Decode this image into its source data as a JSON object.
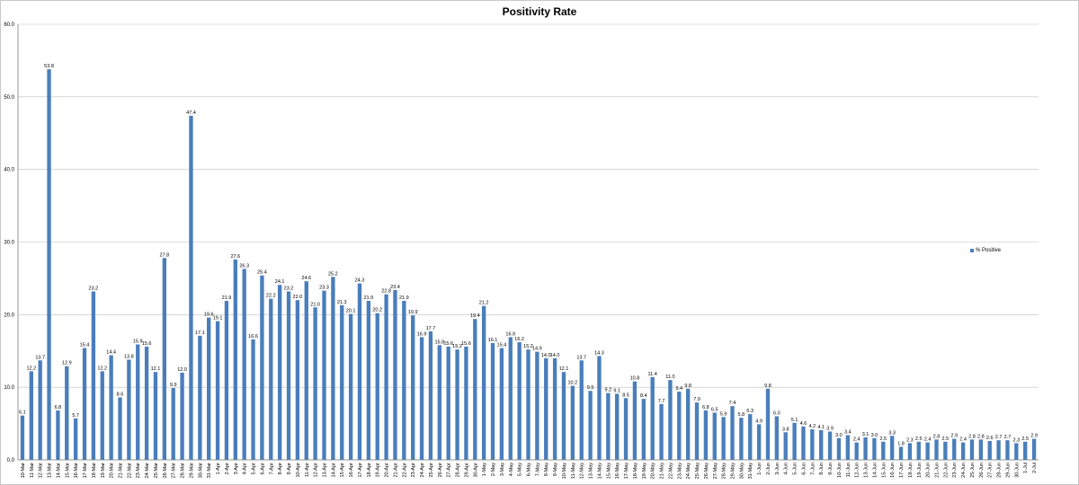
{
  "colors": {
    "bar": "#4a7ebb",
    "grid": "#bfbfbf",
    "axis": "#7f7f7f"
  },
  "chart_data": {
    "type": "bar",
    "title": "Positivity Rate",
    "xlabel": "",
    "ylabel": "",
    "ylim": [
      0,
      60
    ],
    "yticks": [
      "0.0",
      "10.0",
      "20.0",
      "30.0",
      "40.0",
      "50.0",
      "60.0"
    ],
    "grid": true,
    "legend_position": "right",
    "categories": [
      "10-Mar",
      "11-Mar",
      "12-Mar",
      "13-Mar",
      "14-Mar",
      "15-Mar",
      "16-Mar",
      "17-Mar",
      "18-Mar",
      "19-Mar",
      "20-Mar",
      "21-Mar",
      "22-Mar",
      "23-Mar",
      "24-Mar",
      "25-Mar",
      "26-Mar",
      "27-Mar",
      "28-Mar",
      "29-Mar",
      "30-Mar",
      "31-Mar",
      "1-Apr",
      "2-Apr",
      "3-Apr",
      "4-Apr",
      "5-Apr",
      "6-Apr",
      "7-Apr",
      "8-Apr",
      "9-Apr",
      "10-Apr",
      "11-Apr",
      "12-Apr",
      "13-Apr",
      "14-Apr",
      "15-Apr",
      "16-Apr",
      "17-Apr",
      "18-Apr",
      "19-Apr",
      "20-Apr",
      "21-Apr",
      "22-Apr",
      "23-Apr",
      "24-Apr",
      "25-Apr",
      "26-Apr",
      "27-Apr",
      "28-Apr",
      "29-Apr",
      "30-Apr",
      "1-May",
      "2-May",
      "3-May",
      "4-May",
      "5-May",
      "6-May",
      "7-May",
      "8-May",
      "9-May",
      "10-May",
      "11-May",
      "12-May",
      "13-May",
      "14-May",
      "15-May",
      "16-May",
      "17-May",
      "18-May",
      "19-May",
      "20-May",
      "21-May",
      "22-May",
      "23-May",
      "24-May",
      "25-May",
      "26-May",
      "27-May",
      "28-May",
      "29-May",
      "30-May",
      "31-May",
      "1-Jun",
      "2-Jun",
      "3-Jun",
      "4-Jun",
      "5-Jun",
      "6-Jun",
      "7-Jun",
      "8-Jun",
      "9-Jun",
      "10-Jun",
      "11-Jun",
      "12-Jun",
      "13-Jun",
      "14-Jun",
      "15-Jun",
      "16-Jun",
      "17-Jun",
      "18-Jun",
      "19-Jun",
      "20-Jun",
      "21-Jun",
      "22-Jun",
      "23-Jun",
      "24-Jun",
      "25-Jun",
      "26-Jun",
      "27-Jun",
      "28-Jun",
      "29-Jun",
      "30-Jun",
      "1-Jul",
      "2-Jul"
    ],
    "series": [
      {
        "name": "% Positive",
        "values": [
          6.1,
          12.2,
          13.7,
          53.8,
          6.8,
          12.9,
          5.7,
          15.4,
          23.2,
          12.2,
          14.4,
          8.6,
          13.8,
          15.9,
          15.6,
          12.1,
          27.8,
          9.9,
          12.0,
          47.4,
          17.1,
          19.6,
          19.1,
          21.9,
          27.6,
          26.3,
          16.6,
          25.4,
          22.2,
          24.1,
          23.2,
          22.0,
          24.6,
          21.0,
          23.3,
          25.2,
          21.3,
          20.1,
          24.3,
          21.9,
          20.2,
          22.8,
          23.4,
          21.9,
          19.9,
          16.9,
          17.7,
          15.8,
          15.6,
          15.2,
          15.6,
          19.4,
          21.2,
          16.1,
          15.4,
          16.9,
          16.2,
          15.2,
          14.9,
          14.0,
          14.0,
          12.1,
          10.2,
          13.7,
          9.5,
          14.3,
          9.2,
          9.1,
          8.5,
          10.8,
          8.4,
          11.4,
          7.7,
          11.0,
          9.4,
          9.8,
          7.9,
          6.8,
          6.5,
          5.9,
          7.4,
          5.8,
          6.3,
          4.9,
          9.8,
          6.0,
          3.8,
          5.1,
          4.6,
          4.2,
          4.1,
          3.9,
          3.0,
          3.4,
          2.4,
          3.1,
          3.0,
          2.5,
          3.3,
          1.8,
          2.3,
          2.5,
          2.4,
          2.8,
          2.5,
          2.9,
          2.4,
          2.8,
          2.8,
          2.6,
          2.7,
          2.7,
          2.3,
          2.5,
          2.9
        ],
        "labels": [
          "6.1",
          "12.2",
          "13.7",
          "53.8",
          "6.8",
          "12.9",
          "5.7",
          "15.4",
          "23.2",
          "12.2",
          "14.4",
          "8.6",
          "13.8",
          "15.9",
          "15.6",
          "12.1",
          "27.8",
          "9.9",
          "12.0",
          "47.4",
          "17.1",
          "19.6",
          "19.1",
          "21.9",
          "27.6",
          "26.3",
          "16.6",
          "25.4",
          "22.2",
          "24.1",
          "23.2",
          "22.0",
          "24.6",
          "21.0",
          "23.3",
          "25.2",
          "21.3",
          "20.1",
          "24.3",
          "21.9",
          "20.2",
          "22.8",
          "23.4",
          "21.9",
          "19.9",
          "16.9",
          "17.7",
          "15.8",
          "15.6",
          "15.2",
          "15.6",
          "19.4",
          "21.2",
          "16.1",
          "15.4",
          "16.9",
          "16.2",
          "15.2",
          "14.9",
          "14.0",
          "14.0",
          "12.1",
          "10.2",
          "13.7",
          "9.5",
          "14.3",
          "9.2",
          "9.1",
          "8.5",
          "10.8",
          "8.4",
          "11.4",
          "7.7",
          "11.0",
          "9.4",
          "9.8",
          "7.9",
          "6.8",
          "6.5",
          "5.9",
          "7.4",
          "5.8",
          "6.3",
          "4.9",
          "9.8",
          "6.0",
          "3.8",
          "5.1",
          "4.6",
          "4.2",
          "4.1",
          "3.9",
          "3.0",
          "3.4",
          "2.4",
          "3.1",
          "3.0",
          "2.5",
          "3.3",
          "1.8",
          "2.3",
          "2.5",
          "2.4",
          "2.8",
          "2.5",
          "2.9",
          "2.4",
          "2.8",
          "2.8",
          "2.6",
          "2.7",
          "2.7",
          "2.3",
          "2.5",
          "2.9"
        ]
      }
    ]
  }
}
